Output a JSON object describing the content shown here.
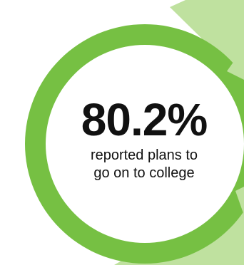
{
  "stat": {
    "value": "80.2%",
    "caption_line1": "reported plans to",
    "caption_line2": "go on to college",
    "fraction": 0.802
  },
  "colors": {
    "ring": "#76c043",
    "panel": "#bfe19f",
    "center": "#ffffff",
    "text": "#111111"
  }
}
